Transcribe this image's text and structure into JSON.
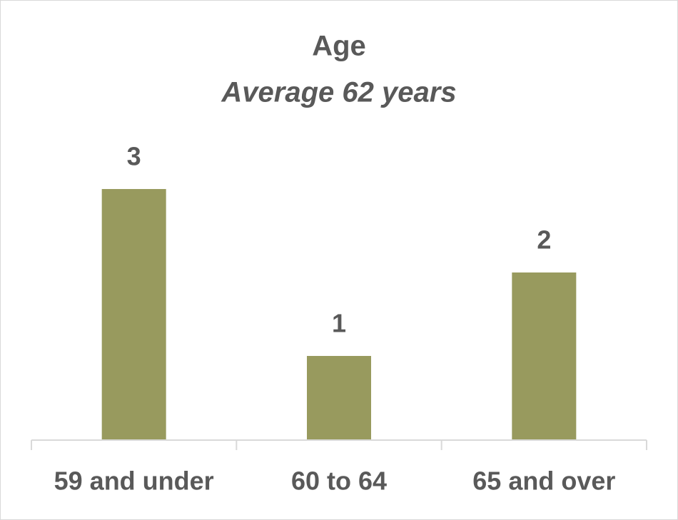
{
  "chart_data": {
    "type": "bar",
    "title": "Age",
    "subtitle": "Average 62 years",
    "categories": [
      "59 and under",
      "60 to 64",
      "65 and over"
    ],
    "values": [
      3,
      1,
      2
    ],
    "color": "#989a5e"
  }
}
